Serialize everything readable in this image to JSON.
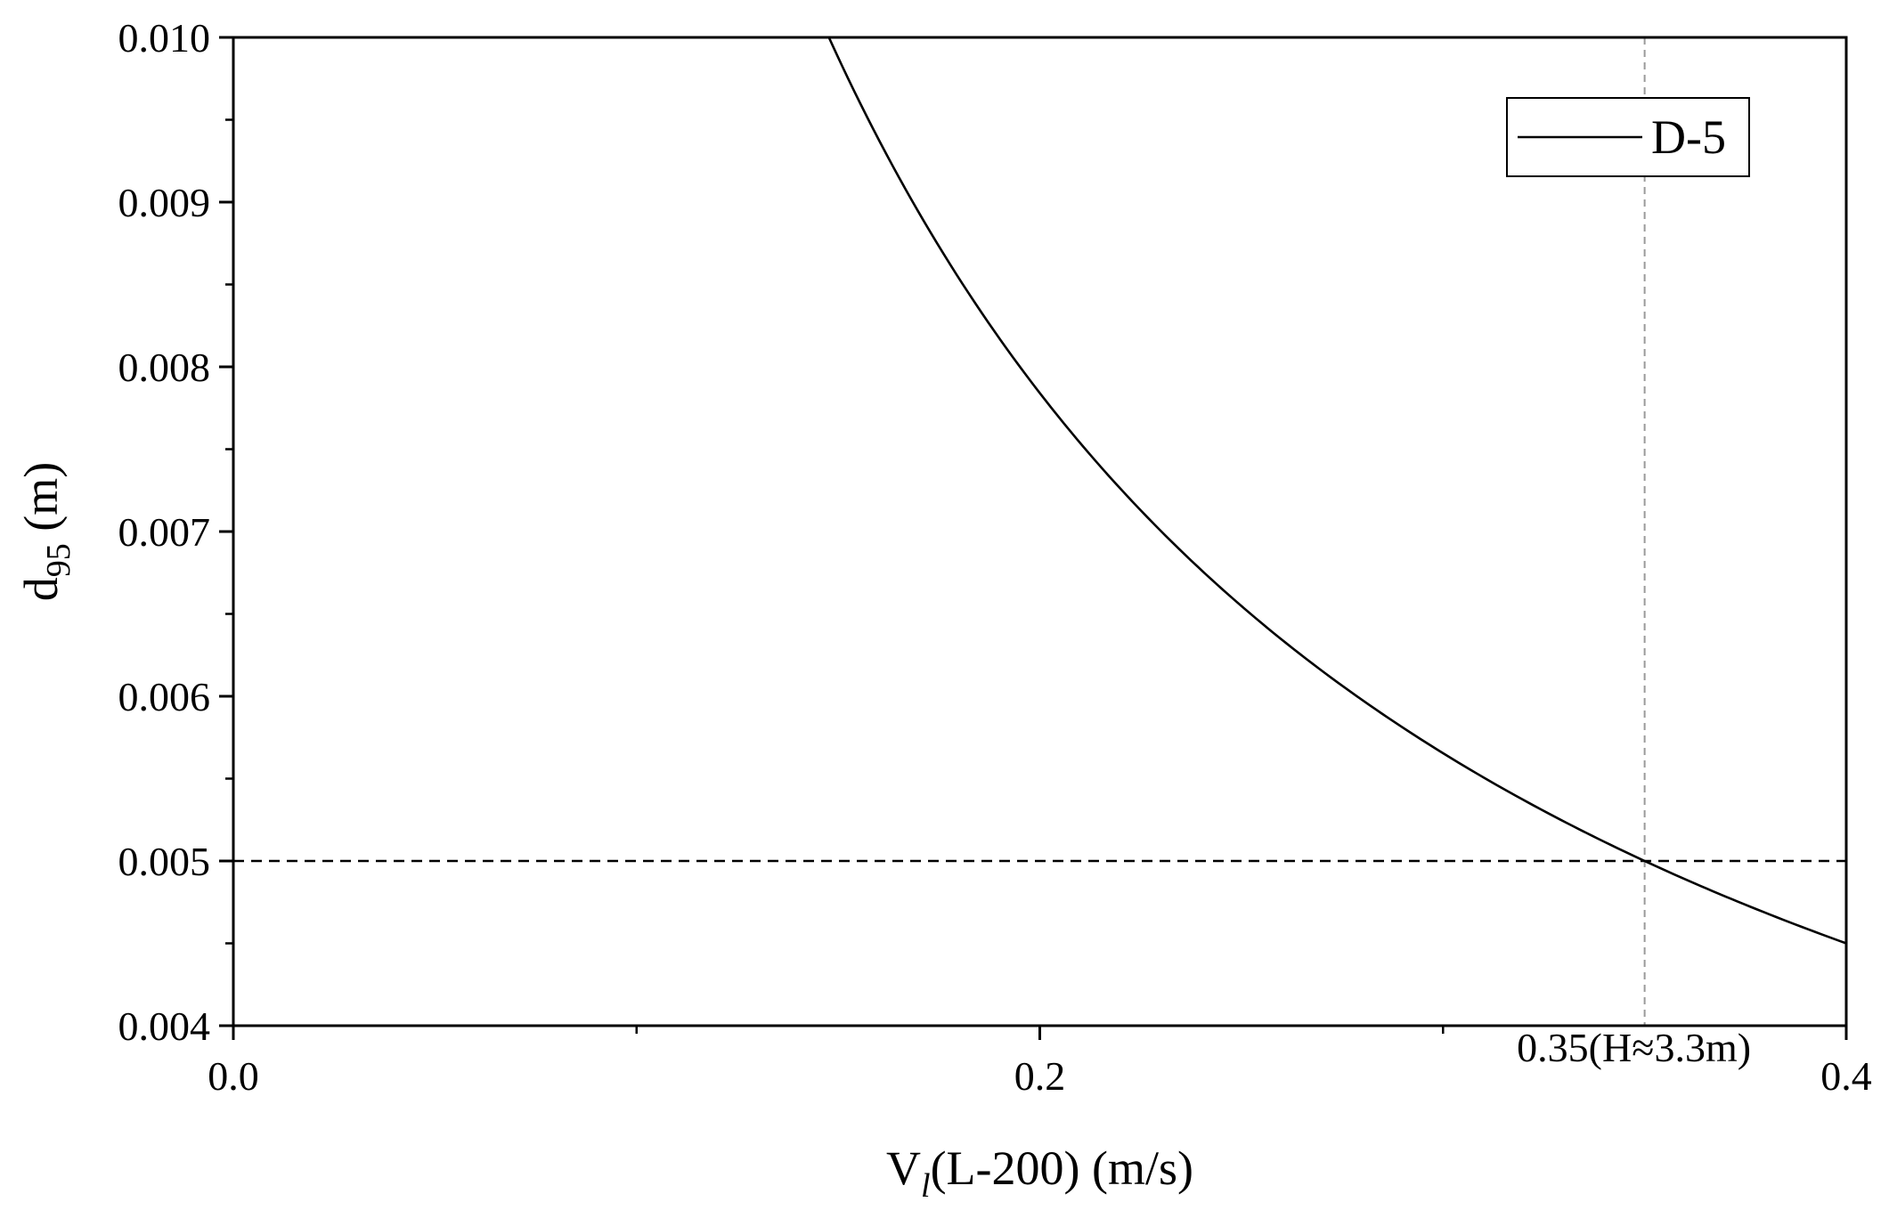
{
  "chart_data": {
    "type": "line",
    "title": "",
    "xlabel": {
      "main": "V",
      "sub": "l",
      "rest": "(L-200) (m/s)"
    },
    "ylabel": {
      "main": "d",
      "sub": "95",
      "rest": " (m)"
    },
    "xlim": [
      0.0,
      0.4
    ],
    "ylim": [
      0.004,
      0.01
    ],
    "x_ticks": [
      {
        "value": 0.0,
        "label": "0.0"
      },
      {
        "value": 0.2,
        "label": "0.2"
      },
      {
        "value": 0.4,
        "label": "0.4"
      }
    ],
    "x_minor_ticks": [
      0.1,
      0.3
    ],
    "y_ticks": [
      {
        "value": 0.004,
        "label": "0.004"
      },
      {
        "value": 0.005,
        "label": "0.005"
      },
      {
        "value": 0.006,
        "label": "0.006"
      },
      {
        "value": 0.007,
        "label": "0.007"
      },
      {
        "value": 0.008,
        "label": "0.008"
      },
      {
        "value": 0.009,
        "label": "0.009"
      },
      {
        "value": 0.01,
        "label": "0.010"
      }
    ],
    "y_minor_ticks": [
      0.0045,
      0.0055,
      0.0065,
      0.0075,
      0.0085,
      0.0095
    ],
    "grid": false,
    "legend": {
      "placement": "top-right",
      "entries": [
        "D-5"
      ]
    },
    "series": [
      {
        "name": "D-5",
        "color": "#000000",
        "x": [
          0.1477,
          0.155,
          0.165,
          0.175,
          0.185,
          0.195,
          0.205,
          0.215,
          0.225,
          0.235,
          0.245,
          0.255,
          0.265,
          0.275,
          0.285,
          0.295,
          0.305,
          0.315,
          0.325,
          0.335,
          0.345,
          0.35,
          0.36,
          0.37,
          0.38,
          0.39,
          0.4
        ],
        "y": [
          0.01,
          0.00968,
          0.00925,
          0.00884,
          0.00847,
          0.00811,
          0.00778,
          0.00747,
          0.00718,
          0.0069,
          0.00664,
          0.0064,
          0.00618,
          0.00597,
          0.00578,
          0.0056,
          0.00544,
          0.00529,
          0.00515,
          0.00521,
          0.00506,
          0.005,
          0.00488,
          0.00476,
          0.00466,
          0.00456,
          0.0045
        ]
      }
    ],
    "reference_lines": [
      {
        "orientation": "horizontal",
        "value": 0.005,
        "style": "dashed",
        "color": "#000000"
      },
      {
        "orientation": "vertical",
        "value": 0.35,
        "style": "dashed",
        "color": "#9a9a9a"
      }
    ],
    "annotations": [
      {
        "text": "0.35(H≈3.3m)",
        "x": 0.35
      }
    ]
  }
}
